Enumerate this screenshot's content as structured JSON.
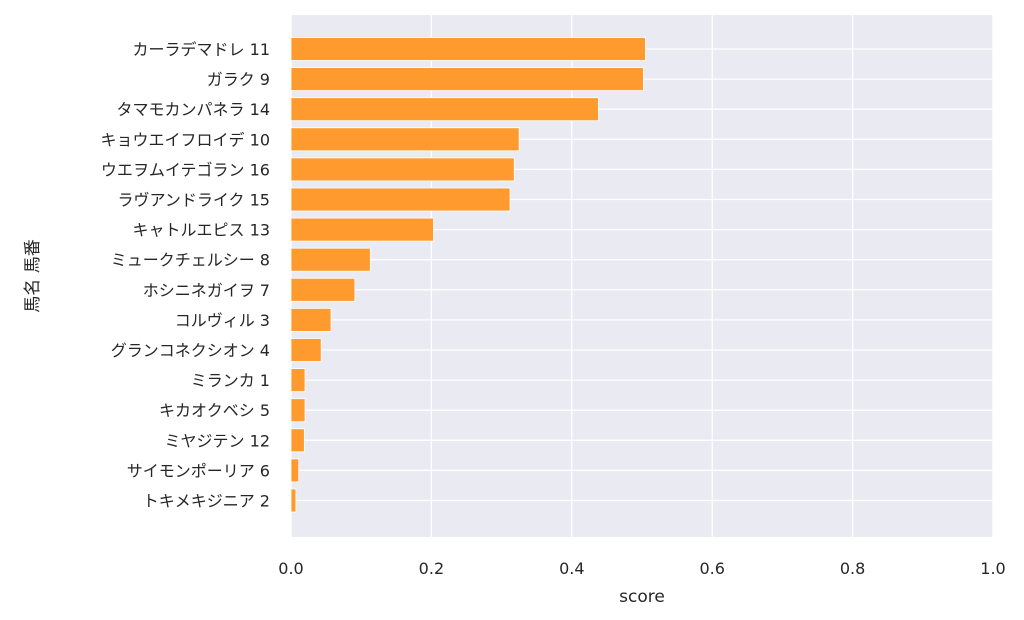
{
  "chart_data": {
    "type": "bar",
    "orientation": "horizontal",
    "title": "",
    "xlabel": "score",
    "ylabel": "馬名 馬番",
    "xlim": [
      0.0,
      1.0
    ],
    "xticks": [
      "0.0",
      "0.2",
      "0.4",
      "0.6",
      "0.8",
      "1.0"
    ],
    "grid": true,
    "legend": "none",
    "colors": {
      "bar": "#ff9a2e",
      "plot_bg": "#eaeaf2",
      "grid": "#ffffff",
      "text": "#262626"
    },
    "categories": [
      "カーラデマドレ 11",
      "ガラク 9",
      "タマモカンパネラ 14",
      "キョウエイフロイデ 10",
      "ウエヲムイテゴラン 16",
      "ラヴアンドライク 15",
      "キャトルエピス 13",
      "ミュークチェルシー 8",
      "ホシニネガイヲ 7",
      "コルヴィル 3",
      "グランコネクシオン 4",
      "ミランカ 1",
      "キカオクベシ 5",
      "ミヤジテン 12",
      "サイモンポーリア 6",
      "トキメキジニア 2"
    ],
    "values": [
      0.505,
      0.502,
      0.438,
      0.325,
      0.318,
      0.312,
      0.203,
      0.113,
      0.091,
      0.057,
      0.043,
      0.02,
      0.02,
      0.019,
      0.011,
      0.007
    ]
  }
}
